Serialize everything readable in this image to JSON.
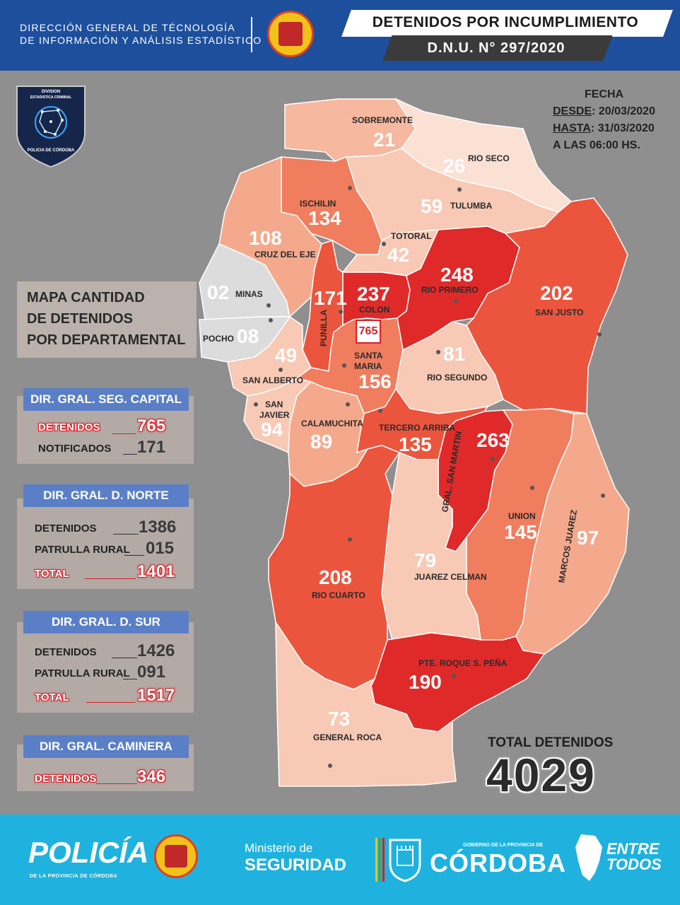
{
  "header": {
    "org_line1": "DIRECCIÓN GENERAL DE TÉCNOLOGÍA",
    "org_line2": "DE INFORMACIÓN Y ANÁLISIS ESTADÍSTICO",
    "seal_text": "POLICIA DE LA PROVINCIA · CORDOBA ·",
    "title": "DETENIDOS POR INCUMPLIMIENTO",
    "subtitle": "D.N.U. N° 297/2020"
  },
  "shield": {
    "line1": "DIVISION",
    "line2": "ESTADISTICA CRIMINAL",
    "line3": "POLICIA DE CÓRDOBA"
  },
  "date": {
    "label": "FECHA",
    "desde_label": "DESDE",
    "desde": ": 20/03/2020",
    "hasta_label": "HASTA",
    "hasta": ": 31/03/2020",
    "hora": "A LAS 06:00 HS."
  },
  "map_title": [
    "MAPA CANTIDAD",
    "DE DETENIDOS",
    "POR DEPARTAMENTAL"
  ],
  "panels": {
    "capital": {
      "title": "DIR. GRAL. SEG. CAPITAL",
      "detenidos_label": "DETENIDOS",
      "detenidos": "765",
      "notificados_label": "NOTIFICADOS",
      "notificados": "171"
    },
    "norte": {
      "title": "DIR. GRAL. D. NORTE",
      "detenidos_label": "DETENIDOS",
      "detenidos": "1386",
      "patrulla_label": "PATRULLA RURAL",
      "patrulla": "015",
      "total_label": "TOTAL",
      "total": "1401"
    },
    "sur": {
      "title": "DIR. GRAL. D.  SUR",
      "detenidos_label": "DETENIDOS",
      "detenidos": "1426",
      "patrulla_label": "PATRULLA RURAL",
      "patrulla": "091",
      "total_label": "TOTAL",
      "total": "1517"
    },
    "caminera": {
      "title": "DIR. GRAL. CAMINERA",
      "detenidos_label": "DETENIDOS",
      "detenidos": "346"
    }
  },
  "capital_box": "765",
  "departments": {
    "sobremonte": {
      "name": "SOBREMONTE",
      "value": "21"
    },
    "rio_seco": {
      "name": "RIO SECO",
      "value": "26"
    },
    "tulumba": {
      "name": "TULUMBA",
      "value": "59"
    },
    "ischilin": {
      "name": "ISCHILIN",
      "value": "134"
    },
    "totoral": {
      "name": "TOTORAL",
      "value": "42"
    },
    "cruz_del_eje": {
      "name": "CRUZ DEL EJE",
      "value": "108"
    },
    "minas": {
      "name": "MINAS",
      "value": "02"
    },
    "pocho": {
      "name": "POCHO",
      "value": "08"
    },
    "punilla": {
      "name": "PUNILLA",
      "value": "171"
    },
    "colon": {
      "name": "COLON",
      "value": "237"
    },
    "rio_primero": {
      "name": "RIO PRIMERO",
      "value": "248"
    },
    "san_justo": {
      "name": "SAN JUSTO",
      "value": "202"
    },
    "san_alberto": {
      "name": "SAN ALBERTO",
      "value": "49"
    },
    "santa_maria": {
      "name1": "SANTA",
      "name2": "MARIA",
      "value": "156"
    },
    "rio_segundo": {
      "name": "RIO SEGUNDO",
      "value": "81"
    },
    "san_javier": {
      "name1": "SAN",
      "name2": "JAVIER",
      "value": "94"
    },
    "calamuchita": {
      "name": "CALAMUCHITA",
      "value": "89"
    },
    "tercero_arriba": {
      "name": "TERCERO ARRIBA",
      "value": "135"
    },
    "gral_san_martin": {
      "name": "GRAL. SAN MARTIN",
      "value": "263"
    },
    "union": {
      "name": "UNION",
      "value": "145"
    },
    "marcos_juarez": {
      "name": "MARCOS JUAREZ",
      "value": "97"
    },
    "rio_cuarto": {
      "name": "RIO CUARTO",
      "value": "208"
    },
    "juarez_celman": {
      "name": "JUAREZ CELMAN",
      "value": "79"
    },
    "roque_saenz_pena": {
      "name": "PTE. ROQUE S. PEÑA",
      "value": "190"
    },
    "general_roca": {
      "name": "GENERAL ROCA",
      "value": "73"
    }
  },
  "total": {
    "label": "TOTAL DETENIDOS",
    "value": "4029"
  },
  "footer": {
    "policia": "POLICÍA",
    "policia_sub": "DE LA PROVINCIA DE CÓRDOBA",
    "ministerio": "Ministerio de",
    "seguridad": "SEGURIDAD",
    "gobierno": "GOBIERNO DE LA PROVINCIA DE",
    "cordoba": "CÓRDOBA",
    "entre": "ENTRE",
    "todos": "TODOS"
  },
  "colors": {
    "header_blue": "#1d4f9c",
    "footer_cyan": "#1fb2df",
    "panel_blue": "#5a7fc7",
    "red_high": "#e02a2a",
    "red_mid": "#ec553d",
    "orange": "#f07d5e",
    "salmon": "#f4a98d",
    "light_salmon": "#f8c9b5",
    "pale": "#fbe0d4",
    "gray_dept": "#dcdcdc"
  }
}
